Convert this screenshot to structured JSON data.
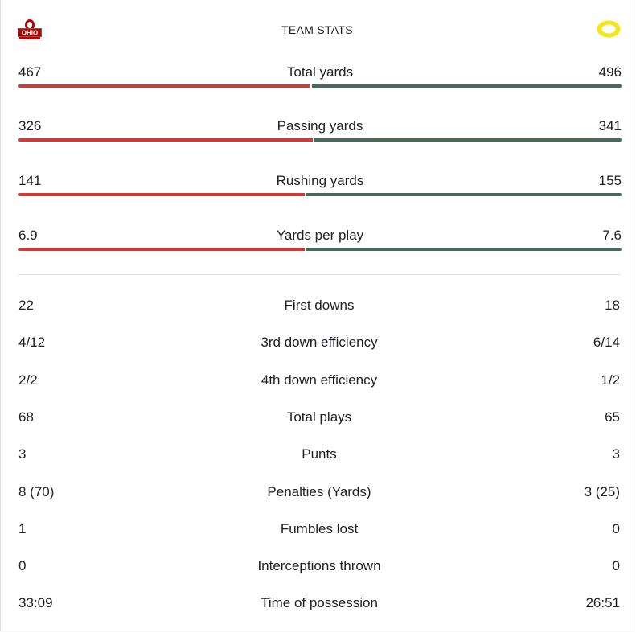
{
  "header": {
    "title": "TEAM STATS",
    "left_team_logo": "ohio-state-logo",
    "right_team_logo": "oregon-o-logo"
  },
  "colors": {
    "left_bar": "#d13a39",
    "right_bar": "#466b5b",
    "oregon_yellow": "#f5e51b",
    "ohio_scarlet": "#bb0000"
  },
  "bar_stats": [
    {
      "label": "Total yards",
      "left": "467",
      "right": "496",
      "left_value": 467,
      "right_value": 496
    },
    {
      "label": "Passing yards",
      "left": "326",
      "right": "341",
      "left_value": 326,
      "right_value": 341
    },
    {
      "label": "Rushing yards",
      "left": "141",
      "right": "155",
      "left_value": 141,
      "right_value": 155
    },
    {
      "label": "Yards per play",
      "left": "6.9",
      "right": "7.6",
      "left_value": 6.9,
      "right_value": 7.6
    }
  ],
  "stats": [
    {
      "label": "First downs",
      "left": "22",
      "right": "18"
    },
    {
      "label": "3rd down efficiency",
      "left": "4/12",
      "right": "6/14"
    },
    {
      "label": "4th down efficiency",
      "left": "2/2",
      "right": "1/2"
    },
    {
      "label": "Total plays",
      "left": "68",
      "right": "65"
    },
    {
      "label": "Punts",
      "left": "3",
      "right": "3"
    },
    {
      "label": "Penalties (Yards)",
      "left": "8 (70)",
      "right": "3 (25)"
    },
    {
      "label": "Fumbles lost",
      "left": "1",
      "right": "0"
    },
    {
      "label": "Interceptions thrown",
      "left": "0",
      "right": "0"
    },
    {
      "label": "Time of possession",
      "left": "33:09",
      "right": "26:51"
    }
  ]
}
